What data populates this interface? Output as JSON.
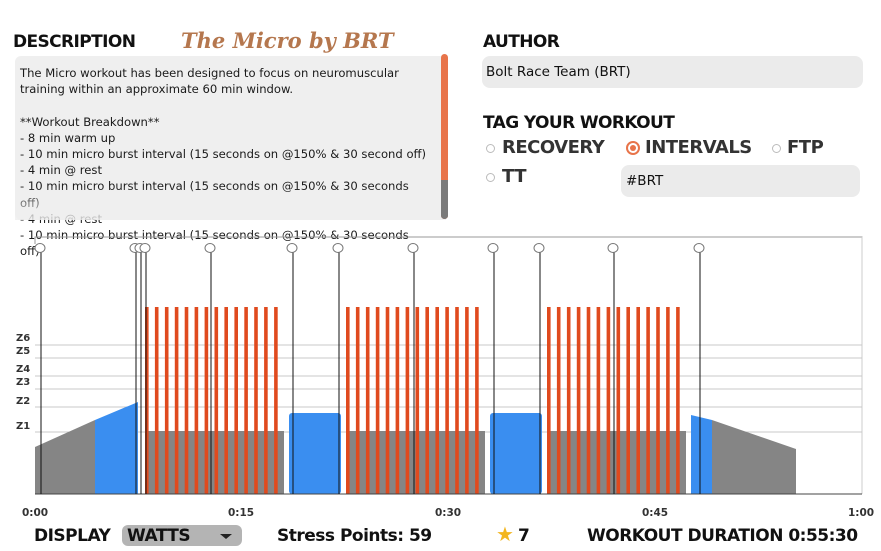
{
  "description": {
    "header": "DESCRIPTION",
    "workout_title": "The Micro by BRT",
    "text": "The Micro workout has been designed to focus on neuromuscular\ntraining within an approximate 60 min window.\n\n**Workout Breakdown**\n- 8 min warm up\n- 10 min micro burst interval (15 seconds on @150% & 30 second off)\n- 4 min @ rest\n- 10 min micro burst interval (15 seconds on @150% & 30 seconds off)\n- 4 min @ rest\n- 10 min micro burst interval (15 seconds on @150% & 30 seconds off)"
  },
  "author": {
    "header": "AUTHOR",
    "value": "Bolt Race Team (BRT)"
  },
  "tags": {
    "header": "TAG YOUR WORKOUT",
    "options": [
      {
        "label": "RECOVERY",
        "selected": false
      },
      {
        "label": "INTERVALS",
        "selected": true
      },
      {
        "label": "FTP",
        "selected": false
      },
      {
        "label": "TT",
        "selected": false
      }
    ],
    "hashtag_value": "#BRT"
  },
  "chart": {
    "zone_labels": [
      "Z6",
      "Z5",
      "Z4",
      "Z3",
      "Z2",
      "Z1"
    ],
    "x_ticks": [
      "0:00",
      "0:15",
      "0:30",
      "0:45",
      "1:00"
    ]
  },
  "footer": {
    "display_label": "DISPLAY",
    "display_value": "WATTS",
    "stress_points": "Stress Points: 59",
    "rating": "7",
    "duration": "WORKOUT DURATION 0:55:30"
  },
  "colors": {
    "accent": "#e8744a",
    "interval_red": "#e04a1e",
    "block_blue": "#3a8ef0",
    "block_gray": "#858585",
    "star": "#f3b61f"
  }
}
